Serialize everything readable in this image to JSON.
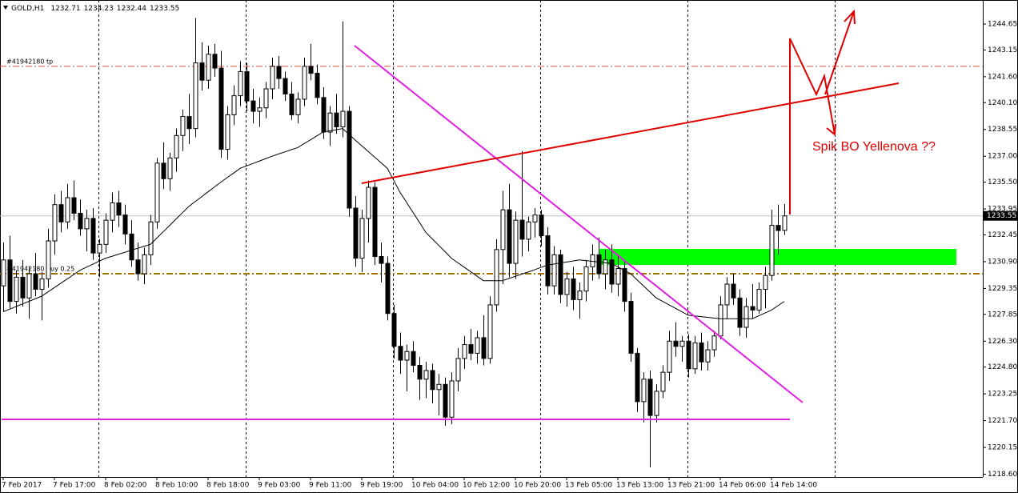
{
  "chart_data": {
    "type": "candlestick",
    "title": "GOLD,H1",
    "categories": [
      "7 Feb 2017",
      null,
      null,
      null,
      null,
      null,
      null,
      null,
      "7 Feb 17:00",
      null,
      null,
      null,
      null,
      null,
      null,
      null,
      "8 Feb 02:00",
      null,
      null,
      null,
      null,
      null,
      null,
      null,
      "8 Feb 10:00",
      null,
      null,
      null,
      null,
      null,
      null,
      null,
      "8 Feb 18:00",
      null,
      null,
      null,
      null,
      null,
      null,
      null,
      "9 Feb 03:00",
      null,
      null,
      null,
      null,
      null,
      null,
      null,
      "9 Feb 11:00",
      null,
      null,
      null,
      null,
      null,
      null,
      null,
      "9 Feb 19:00",
      null,
      null,
      null,
      null,
      null,
      null,
      null,
      "10 Feb 04:00",
      null,
      null,
      null,
      null,
      null,
      null,
      null,
      "10 Feb 12:00",
      null,
      null,
      null,
      null,
      null,
      null,
      null,
      "10 Feb 20:00",
      null,
      null,
      null,
      null,
      null,
      null,
      null,
      "13 Feb 05:00",
      null,
      null,
      null,
      null,
      null,
      null,
      null,
      "13 Feb 13:00",
      null,
      null,
      null,
      null,
      null,
      null,
      null,
      "13 Feb 21:00",
      null,
      null,
      null,
      null,
      null,
      null,
      null,
      "14 Feb 06:00",
      null,
      null,
      null,
      null,
      null,
      null,
      null,
      "14 Feb 14:00",
      null,
      null
    ],
    "open": [
      1229.5,
      1231.0,
      1228.6,
      1230.0,
      1228.8,
      1230.2,
      1229.3,
      1229.9,
      1232.1,
      1234.2,
      1233.2,
      1234.6,
      1233.7,
      1232.8,
      1233.4,
      1231.4,
      1231.9,
      1233.3,
      1234.3,
      1233.6,
      1232.5,
      1231.0,
      1230.2,
      1231.3,
      1233.2,
      1236.6,
      1235.7,
      1236.9,
      1238.2,
      1239.3,
      1238.6,
      1242.4,
      1241.4,
      1242.9,
      1242.1,
      1237.4,
      1239.4,
      1240.5,
      1241.9,
      1240.2,
      1239.6,
      1239.8,
      1240.9,
      1242.2,
      1241.5,
      1240.6,
      1239.4,
      1240.3,
      1242.2,
      1241.8,
      1240.4,
      1238.4,
      1239.5,
      1238.7,
      1239.6,
      1234.0,
      1231.1,
      1233.4,
      1235.2,
      1231.2,
      1230.8,
      1227.9,
      1226.0,
      1225.2,
      1225.7,
      1224.9,
      1224.1,
      1224.6,
      1223.5,
      1223.8,
      1221.9,
      1224.0,
      1225.3,
      1226.1,
      1225.6,
      1226.5,
      1225.3,
      1228.4,
      1231.6,
      1233.9,
      1230.8,
      1233.3,
      1232.2,
      1233.2,
      1233.6,
      1232.4,
      1229.5,
      1231.3,
      1229.0,
      1229.9,
      1228.7,
      1229.2,
      1230.6,
      1231.3,
      1230.2,
      1231.0,
      1229.6,
      1230.5,
      1228.6,
      1225.6,
      1222.8,
      1224.1,
      1222.0,
      1223.4,
      1224.5,
      1226.3,
      1226.0,
      1226.3,
      1224.7,
      1226.2,
      1225.1,
      1225.8,
      1226.6,
      1228.4,
      1229.6,
      1228.8,
      1227.1,
      1228.3,
      1228.1,
      1229.3,
      1230.1,
      1233.0,
      1232.71
    ],
    "high": [
      1232.0,
      1232.4,
      1230.4,
      1231.0,
      1230.6,
      1231.4,
      1230.3,
      1232.8,
      1234.8,
      1235.0,
      1235.4,
      1235.6,
      1234.5,
      1233.9,
      1234.0,
      1232.2,
      1233.7,
      1234.9,
      1235.0,
      1234.2,
      1233.3,
      1232.0,
      1231.7,
      1233.6,
      1236.9,
      1237.8,
      1237.2,
      1238.6,
      1239.7,
      1240.6,
      1245.0,
      1243.6,
      1243.4,
      1243.5,
      1243.1,
      1239.9,
      1241.1,
      1242.5,
      1242.4,
      1240.9,
      1240.4,
      1241.3,
      1242.7,
      1242.8,
      1241.9,
      1241.3,
      1240.7,
      1242.7,
      1243.5,
      1242.3,
      1241.0,
      1239.9,
      1240.6,
      1244.8,
      1239.9,
      1234.7,
      1233.9,
      1235.6,
      1235.5,
      1232.0,
      1231.2,
      1228.4,
      1226.8,
      1226.1,
      1226.3,
      1225.4,
      1225.1,
      1225.0,
      1224.4,
      1224.2,
      1224.5,
      1225.9,
      1226.6,
      1227.0,
      1226.9,
      1227.8,
      1228.9,
      1232.2,
      1235.0,
      1235.4,
      1233.8,
      1237.3,
      1233.5,
      1234.0,
      1233.9,
      1232.9,
      1231.8,
      1231.6,
      1230.3,
      1230.6,
      1229.7,
      1231.0,
      1231.9,
      1232.3,
      1231.6,
      1231.9,
      1231.2,
      1230.9,
      1229.1,
      1225.9,
      1224.5,
      1224.6,
      1223.8,
      1224.9,
      1226.9,
      1227.4,
      1226.6,
      1226.7,
      1226.6,
      1226.8,
      1226.3,
      1226.9,
      1228.9,
      1230.0,
      1230.2,
      1229.3,
      1228.8,
      1229.6,
      1229.7,
      1230.6,
      1233.9,
      1234.2,
      1234.23
    ],
    "low": [
      1228.0,
      1228.2,
      1227.9,
      1228.3,
      1227.6,
      1228.9,
      1227.5,
      1229.4,
      1231.3,
      1232.6,
      1232.8,
      1233.3,
      1232.4,
      1231.5,
      1231.0,
      1230.0,
      1231.4,
      1232.6,
      1232.9,
      1231.9,
      1230.6,
      1229.8,
      1229.6,
      1230.7,
      1232.8,
      1235.1,
      1235.0,
      1236.1,
      1237.3,
      1237.7,
      1238.1,
      1240.8,
      1240.9,
      1241.6,
      1236.9,
      1236.8,
      1238.8,
      1239.9,
      1239.6,
      1238.9,
      1238.7,
      1239.2,
      1240.3,
      1240.9,
      1240.2,
      1239.1,
      1238.9,
      1239.9,
      1241.4,
      1240.0,
      1238.0,
      1237.6,
      1238.3,
      1238.1,
      1233.5,
      1230.6,
      1230.3,
      1232.0,
      1230.7,
      1229.7,
      1227.5,
      1225.3,
      1224.4,
      1223.4,
      1224.5,
      1222.9,
      1223.0,
      1222.7,
      1222.0,
      1221.4,
      1221.5,
      1223.4,
      1224.7,
      1225.2,
      1225.0,
      1224.9,
      1225.0,
      1228.0,
      1229.6,
      1230.0,
      1229.9,
      1231.2,
      1231.5,
      1232.3,
      1231.8,
      1229.0,
      1229.0,
      1228.5,
      1228.3,
      1228.1,
      1227.6,
      1228.6,
      1229.8,
      1229.9,
      1229.3,
      1229.1,
      1228.9,
      1228.0,
      1225.1,
      1222.2,
      1221.6,
      1219.0,
      1221.6,
      1223.0,
      1224.0,
      1225.4,
      1225.1,
      1224.2,
      1224.4,
      1224.6,
      1224.6,
      1225.4,
      1226.4,
      1227.6,
      1228.4,
      1226.6,
      1226.5,
      1227.6,
      1227.9,
      1228.2,
      1229.8,
      1231.3,
      1232.44
    ],
    "close": [
      1231.0,
      1228.6,
      1230.0,
      1228.8,
      1230.2,
      1229.3,
      1229.9,
      1232.1,
      1234.2,
      1233.2,
      1234.6,
      1233.7,
      1232.8,
      1233.4,
      1231.4,
      1231.9,
      1233.3,
      1234.3,
      1233.6,
      1232.5,
      1231.0,
      1230.2,
      1231.3,
      1233.2,
      1236.6,
      1235.7,
      1236.9,
      1238.2,
      1239.3,
      1238.6,
      1242.4,
      1241.4,
      1242.9,
      1242.1,
      1237.4,
      1239.4,
      1240.5,
      1241.9,
      1240.2,
      1239.6,
      1239.8,
      1240.9,
      1242.2,
      1241.5,
      1240.6,
      1239.4,
      1240.3,
      1242.2,
      1241.8,
      1240.4,
      1238.4,
      1239.5,
      1238.7,
      1239.6,
      1234.0,
      1231.1,
      1233.4,
      1235.2,
      1231.2,
      1230.8,
      1227.9,
      1226.0,
      1225.2,
      1225.7,
      1224.9,
      1224.1,
      1224.6,
      1223.5,
      1223.8,
      1221.9,
      1224.0,
      1225.3,
      1226.1,
      1225.6,
      1226.5,
      1225.3,
      1228.4,
      1231.6,
      1233.9,
      1230.8,
      1233.3,
      1232.2,
      1233.2,
      1233.6,
      1232.4,
      1229.5,
      1231.3,
      1229.0,
      1229.9,
      1228.7,
      1229.2,
      1230.6,
      1231.3,
      1230.2,
      1231.0,
      1229.6,
      1230.5,
      1228.6,
      1225.6,
      1222.8,
      1224.1,
      1222.0,
      1223.4,
      1224.5,
      1226.3,
      1226.0,
      1226.3,
      1224.7,
      1226.2,
      1225.1,
      1225.8,
      1226.6,
      1228.4,
      1229.6,
      1228.8,
      1227.1,
      1228.3,
      1228.1,
      1229.3,
      1230.1,
      1233.0,
      1232.7,
      1233.55
    ],
    "ma": [
      1228.0,
      1228.15,
      1228.3,
      1228.45,
      1228.6,
      1228.75,
      1228.9,
      1229.15,
      1229.4,
      1229.65,
      1229.9,
      1230.15,
      1230.4,
      1230.58,
      1230.75,
      1230.93,
      1231.1,
      1231.21,
      1231.33,
      1231.44,
      1231.56,
      1231.67,
      1231.79,
      1231.9,
      1232.27,
      1232.63,
      1233.0,
      1233.37,
      1233.73,
      1234.1,
      1234.38,
      1234.66,
      1234.94,
      1235.22,
      1235.5,
      1235.77,
      1236.03,
      1236.3,
      1236.44,
      1236.58,
      1236.72,
      1236.86,
      1237.0,
      1237.13,
      1237.25,
      1237.38,
      1237.5,
      1237.73,
      1237.95,
      1238.18,
      1238.4,
      1238.47,
      1238.53,
      1238.6,
      1238.27,
      1237.93,
      1237.6,
      1237.28,
      1236.95,
      1236.63,
      1236.3,
      1235.6,
      1234.9,
      1234.33,
      1233.75,
      1233.18,
      1232.6,
      1232.23,
      1231.85,
      1231.48,
      1231.1,
      1230.84,
      1230.58,
      1230.32,
      1230.06,
      1229.8,
      1229.8,
      1229.8,
      1229.8,
      1229.93,
      1230.05,
      1230.18,
      1230.3,
      1230.43,
      1230.57,
      1230.7,
      1230.76,
      1230.82,
      1230.88,
      1230.94,
      1231.0,
      1230.96,
      1230.92,
      1230.88,
      1230.84,
      1230.8,
      1230.6,
      1230.4,
      1230.2,
      1229.85,
      1229.5,
      1229.15,
      1228.8,
      1228.6,
      1228.4,
      1228.2,
      1228.0,
      1227.8,
      1227.76,
      1227.72,
      1227.68,
      1227.64,
      1227.6,
      1227.6,
      1227.6,
      1227.6,
      1227.6,
      1227.6,
      1227.77,
      1227.93,
      1228.1,
      1228.35,
      1228.6
    ],
    "up_color": "#ffffff",
    "down_color": "#000000",
    "ma_color": "#000000",
    "ylim": [
      1218.44,
      1246.04
    ],
    "yticks": [
      1244.65,
      1243.15,
      {
        "value": 1241.6,
        "label": "1241.60"
      },
      {
        "value": 1240.1,
        "label": "1240.10"
      },
      1238.55,
      {
        "value": 1237,
        "label": "1237.00"
      },
      {
        "value": 1235.5,
        "label": "1235.50"
      },
      1233.95,
      1232.45,
      {
        "value": 1230.9,
        "label": "1230.90"
      },
      1229.35,
      1227.85,
      {
        "value": 1226.3,
        "label": "1226.30"
      },
      {
        "value": 1224.8,
        "label": "1224.80"
      },
      1223.25,
      {
        "value": 1221.7,
        "label": "1221.70"
      },
      1220.15,
      {
        "value": 1218.6,
        "label": "1218.60"
      }
    ],
    "levels": [
      {
        "label": "#41942180 tp",
        "value": 1242.2,
        "color": "#e0533c"
      },
      {
        "label": "#41942180 buy 0.25",
        "value": 1230.2,
        "color": "#a07000"
      }
    ],
    "annotation": "Spik BO Yellenova ??"
  }
}
